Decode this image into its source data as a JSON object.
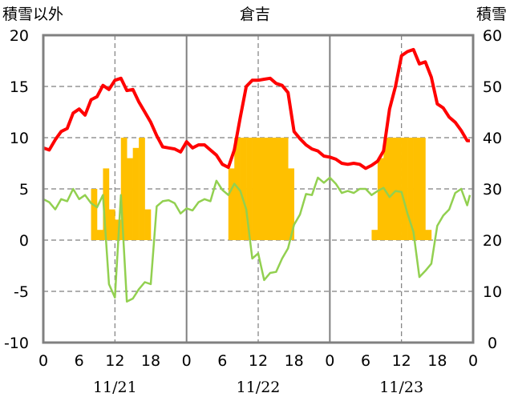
{
  "chart_data": {
    "type": "line",
    "title": "倉吉",
    "left_axis_label": "積雪以外",
    "right_axis_label": "積雪",
    "left_ylim": [
      -10,
      20
    ],
    "left_ticks": [
      "20",
      "15",
      "10",
      "5",
      "0",
      "-5",
      "-10"
    ],
    "left_tick_values": [
      20,
      15,
      10,
      5,
      0,
      -5,
      -10
    ],
    "right_ylim": [
      0,
      60
    ],
    "right_ticks": [
      "60",
      "50",
      "40",
      "30",
      "20",
      "10",
      "0"
    ],
    "right_tick_values": [
      60,
      50,
      40,
      30,
      20,
      10,
      0
    ],
    "x_range_hours": [
      0,
      72
    ],
    "x_ticks": [
      "0",
      "6",
      "12",
      "18",
      "0",
      "6",
      "12",
      "18",
      "0",
      "6",
      "12",
      "18",
      "0"
    ],
    "x_tick_hours": [
      0,
      6,
      12,
      18,
      24,
      30,
      36,
      42,
      48,
      54,
      60,
      66,
      72
    ],
    "date_labels": [
      "11/21",
      "11/22",
      "11/23"
    ],
    "date_label_hours": [
      12,
      36,
      60
    ],
    "vertical_day_lines_hours": [
      24,
      48
    ],
    "dashed_gridlines_hours": [
      12,
      36,
      60
    ],
    "grid_y_values": [
      -5,
      0,
      5,
      10,
      15
    ],
    "colors": {
      "temperature": "#ff0000",
      "precipitation": "#ffc000",
      "wind": "#92d050",
      "snow_depth": "#7030a0",
      "frame": "#808080",
      "grid": "#7f7f7f"
    },
    "series": [
      {
        "key": "temperature",
        "axis": "left",
        "kind": "line",
        "x": [
          0,
          1,
          2,
          3,
          4,
          5,
          6,
          7,
          8,
          9,
          10,
          11,
          12,
          13,
          14,
          15,
          16,
          17,
          18,
          19,
          20,
          21,
          22,
          23,
          24,
          25,
          26,
          27,
          28,
          29,
          30,
          31,
          32,
          33,
          34,
          35,
          36,
          37,
          38,
          39,
          40,
          41,
          42,
          43,
          44,
          45,
          46,
          47,
          48,
          49,
          50,
          51,
          52,
          53,
          54,
          55,
          56,
          57,
          58,
          59,
          60,
          61,
          62,
          63,
          64,
          65,
          66,
          67,
          68,
          69,
          70,
          71
        ],
        "values": [
          9.0,
          8.8,
          9.8,
          10.6,
          10.9,
          12.4,
          12.8,
          12.2,
          13.7,
          14.0,
          15.1,
          14.7,
          15.6,
          15.8,
          14.6,
          14.7,
          13.5,
          12.5,
          11.5,
          10.2,
          9.1,
          9.0,
          8.9,
          8.6,
          9.6,
          9.0,
          9.3,
          9.3,
          8.8,
          8.3,
          7.4,
          7.1,
          8.8,
          12.0,
          15.0,
          15.6,
          15.6,
          15.7,
          15.8,
          15.3,
          15.1,
          14.4,
          10.6,
          9.9,
          9.3,
          8.9,
          8.7,
          8.2,
          8.1,
          7.9,
          7.5,
          7.4,
          7.5,
          7.4,
          7.0,
          7.3,
          7.7,
          8.7,
          12.8,
          15.0,
          18.0,
          18.4,
          18.6,
          17.2,
          17.4,
          15.9,
          13.3,
          12.9,
          12.0,
          11.5,
          10.7,
          9.7
        ],
        "end": 9.7
      },
      {
        "key": "wind",
        "axis": "left",
        "kind": "line",
        "x": [
          0,
          1,
          2,
          3,
          4,
          5,
          6,
          7,
          8,
          9,
          10,
          11,
          12,
          13,
          14,
          15,
          16,
          17,
          18,
          19,
          20,
          21,
          22,
          23,
          24,
          25,
          26,
          27,
          28,
          29,
          30,
          31,
          32,
          33,
          34,
          35,
          36,
          37,
          38,
          39,
          40,
          41,
          42,
          43,
          44,
          45,
          46,
          47,
          48,
          49,
          50,
          51,
          52,
          53,
          54,
          55,
          56,
          57,
          58,
          59,
          60,
          61,
          62,
          63,
          64,
          65,
          66,
          67,
          68,
          69,
          70,
          71
        ],
        "values": [
          4.0,
          3.7,
          3.0,
          4.0,
          3.8,
          5.0,
          4.0,
          4.4,
          3.6,
          3.2,
          4.4,
          -4.3,
          -5.6,
          4.4,
          -6.0,
          -5.7,
          -4.8,
          -4.1,
          -4.3,
          3.3,
          3.8,
          3.9,
          3.6,
          2.6,
          3.1,
          2.9,
          3.7,
          4.0,
          3.8,
          5.8,
          4.9,
          4.4,
          5.5,
          4.8,
          3.0,
          -1.8,
          -1.3,
          -3.9,
          -3.2,
          -3.1,
          -1.8,
          -0.8,
          1.5,
          2.5,
          4.5,
          4.4,
          6.1,
          5.6,
          6.1,
          5.5,
          4.6,
          4.8,
          4.6,
          5.0,
          5.0,
          4.4,
          4.8,
          5.1,
          4.2,
          4.8,
          4.7,
          2.6,
          0.8,
          -3.6,
          -3.0,
          -2.3,
          1.4,
          2.4,
          3.0,
          4.6,
          5.0,
          3.4
        ],
        "end": 4.4
      },
      {
        "key": "snow_depth",
        "axis": "right",
        "kind": "line",
        "x": [
          0,
          72
        ],
        "values": [
          0,
          0
        ]
      },
      {
        "key": "precipitation",
        "axis": "left",
        "kind": "bar",
        "bars": [
          {
            "hour": 8,
            "value": 5
          },
          {
            "hour": 9,
            "value": 1
          },
          {
            "hour": 10,
            "value": 7
          },
          {
            "hour": 11,
            "value": 3
          },
          {
            "hour": 12,
            "value": 2
          },
          {
            "hour": 13,
            "value": 10
          },
          {
            "hour": 14,
            "value": 8
          },
          {
            "hour": 15,
            "value": 9
          },
          {
            "hour": 16,
            "value": 10
          },
          {
            "hour": 17,
            "value": 3
          },
          {
            "hour": 31,
            "value": 7
          },
          {
            "hour": 32,
            "value": 10
          },
          {
            "hour": 33,
            "value": 10
          },
          {
            "hour": 34,
            "value": 10
          },
          {
            "hour": 35,
            "value": 10
          },
          {
            "hour": 36,
            "value": 10
          },
          {
            "hour": 37,
            "value": 10
          },
          {
            "hour": 38,
            "value": 10
          },
          {
            "hour": 39,
            "value": 10
          },
          {
            "hour": 40,
            "value": 10
          },
          {
            "hour": 41,
            "value": 7
          },
          {
            "hour": 55,
            "value": 1
          },
          {
            "hour": 56,
            "value": 8
          },
          {
            "hour": 57,
            "value": 10
          },
          {
            "hour": 58,
            "value": 10
          },
          {
            "hour": 59,
            "value": 10
          },
          {
            "hour": 60,
            "value": 10
          },
          {
            "hour": 61,
            "value": 10
          },
          {
            "hour": 62,
            "value": 10
          },
          {
            "hour": 63,
            "value": 10
          },
          {
            "hour": 64,
            "value": 1
          }
        ]
      }
    ]
  }
}
